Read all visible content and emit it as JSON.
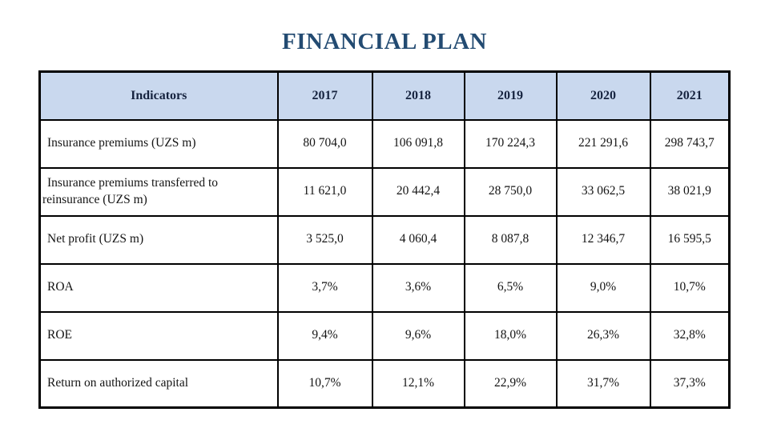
{
  "slide": {
    "title": "FINANCIAL PLAN"
  },
  "colors": {
    "title_text": "#234b72",
    "header_background": "#c9d8ee",
    "table_border": "#000000",
    "body_text": "#141414"
  },
  "table": {
    "columns": [
      "Indicators",
      "2017",
      "2018",
      "2019",
      "2020",
      "2021"
    ],
    "rows": [
      {
        "label": "Insurance premiums (UZS m)",
        "values": [
          "80 704,0",
          "106 091,8",
          "170 224,3",
          "221 291,6",
          "298 743,7"
        ]
      },
      {
        "label": "Insurance premiums transferred to reinsurance (UZS m)",
        "values": [
          "11 621,0",
          "20 442,4",
          "28 750,0",
          "33 062,5",
          "38 021,9"
        ]
      },
      {
        "label": "Net profit (UZS m)",
        "values": [
          "3 525,0",
          "4 060,4",
          "8 087,8",
          "12 346,7",
          "16 595,5"
        ]
      },
      {
        "label": "ROA",
        "values": [
          "3,7%",
          "3,6%",
          "6,5%",
          "9,0%",
          "10,7%"
        ]
      },
      {
        "label": "ROE",
        "values": [
          "9,4%",
          "9,6%",
          "18,0%",
          "26,3%",
          "32,8%"
        ]
      },
      {
        "label": "Return on authorized capital",
        "values": [
          "10,7%",
          "12,1%",
          "22,9%",
          "31,7%",
          "37,3%"
        ]
      }
    ]
  },
  "chart_data": {
    "type": "table",
    "title": "FINANCIAL PLAN",
    "categories": [
      "2017",
      "2018",
      "2019",
      "2020",
      "2021"
    ],
    "series": [
      {
        "name": "Insurance premiums (UZS m)",
        "values": [
          80704.0,
          106091.8,
          170224.3,
          221291.6,
          298743.7
        ]
      },
      {
        "name": "Insurance premiums transferred to reinsurance (UZS m)",
        "values": [
          11621.0,
          20442.4,
          28750.0,
          33062.5,
          38021.9
        ]
      },
      {
        "name": "Net profit (UZS m)",
        "values": [
          3525.0,
          4060.4,
          8087.8,
          12346.7,
          16595.5
        ]
      },
      {
        "name": "ROA (%)",
        "values": [
          3.7,
          3.6,
          6.5,
          9.0,
          10.7
        ]
      },
      {
        "name": "ROE (%)",
        "values": [
          9.4,
          9.6,
          18.0,
          26.3,
          32.8
        ]
      },
      {
        "name": "Return on authorized capital (%)",
        "values": [
          10.7,
          12.1,
          22.9,
          31.7,
          37.3
        ]
      }
    ]
  }
}
